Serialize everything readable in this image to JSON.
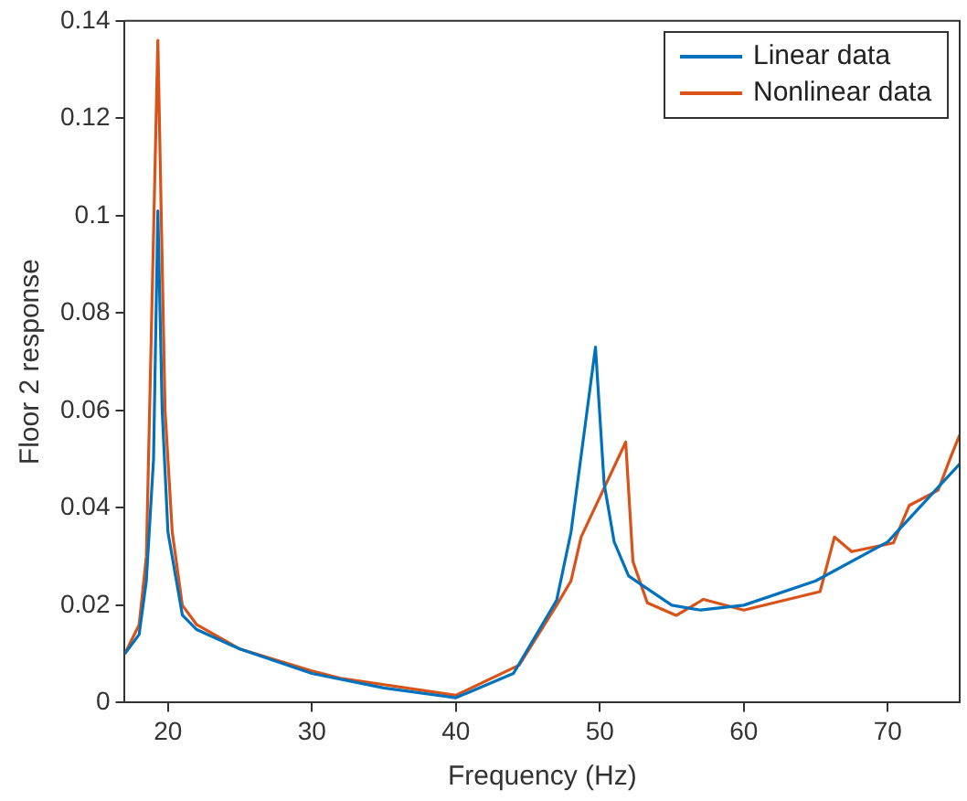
{
  "chart_data": {
    "type": "line",
    "xlabel": "Frequency (Hz)",
    "ylabel": "Floor 2 response",
    "xlim": [
      17,
      75
    ],
    "xticks": [
      20,
      30,
      40,
      50,
      60,
      70
    ],
    "ylim": [
      0,
      0.14
    ],
    "yticks": [
      0,
      0.02,
      0.04,
      0.06,
      0.08,
      0.1,
      0.12,
      0.14
    ],
    "grid": false,
    "legend": "top right",
    "marker": "none",
    "line_style": "solid",
    "series": [
      {
        "name": "Linear data",
        "color": "#0072bd",
        "x": [
          17,
          18,
          18.5,
          19,
          19.3,
          19.6,
          20,
          21,
          22,
          25,
          30,
          35,
          40,
          44,
          47,
          48,
          49.7,
          50.3,
          51,
          52,
          53,
          55,
          57,
          60,
          65,
          70,
          75
        ],
        "values": [
          0.01,
          0.014,
          0.025,
          0.05,
          0.101,
          0.06,
          0.035,
          0.018,
          0.015,
          0.011,
          0.006,
          0.003,
          0.001,
          0.006,
          0.021,
          0.035,
          0.073,
          0.045,
          0.033,
          0.026,
          0.024,
          0.02,
          0.019,
          0.02,
          0.025,
          0.033,
          0.049
        ]
      },
      {
        "name": "Nonlinear data",
        "color": "#d95319",
        "x": [
          17,
          18,
          18.5,
          19.3,
          19.8,
          20.3,
          21,
          22,
          25,
          30,
          32,
          40,
          44.4,
          47,
          48,
          48.7,
          51.8,
          52.3,
          53.3,
          55.3,
          57.2,
          60,
          65.3,
          66.3,
          67.5,
          70.4,
          71.5,
          73.5,
          74.4,
          75
        ],
        "values": [
          0.01,
          0.016,
          0.03,
          0.136,
          0.06,
          0.035,
          0.02,
          0.016,
          0.011,
          0.0065,
          0.005,
          0.0015,
          0.0077,
          0.02,
          0.025,
          0.034,
          0.0535,
          0.029,
          0.0205,
          0.0179,
          0.0212,
          0.019,
          0.0228,
          0.034,
          0.031,
          0.0328,
          0.0405,
          0.0436,
          0.0506,
          0.055
        ]
      }
    ]
  }
}
